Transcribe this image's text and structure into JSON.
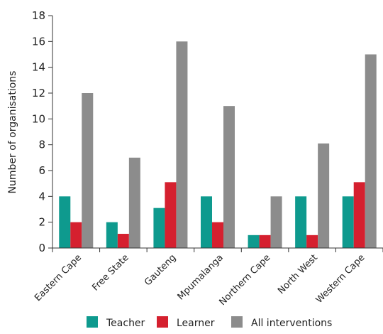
{
  "chart_data": {
    "type": "bar",
    "title": "",
    "xlabel": "",
    "ylabel": "Number of organisations",
    "ylim": [
      0,
      18
    ],
    "yticks": [
      0,
      2,
      4,
      6,
      8,
      10,
      12,
      14,
      16,
      18
    ],
    "grid": false,
    "legend_position": "bottom",
    "categories": [
      "Eastern Cape",
      "Free State",
      "Gauteng",
      "Mpumalanga",
      "Northern Cape",
      "North West",
      "Western Cape"
    ],
    "series": [
      {
        "name": "Teacher",
        "color": "#0e9a8e",
        "values": [
          4,
          2,
          3.1,
          4,
          1,
          4,
          4
        ]
      },
      {
        "name": "Learner",
        "color": "#d5202f",
        "values": [
          2,
          1.1,
          5.1,
          2,
          1,
          1,
          5.1
        ]
      },
      {
        "name": "All interventions",
        "color": "#8c8c8c",
        "values": [
          12,
          7,
          16,
          11,
          4,
          8.1,
          15
        ]
      }
    ]
  }
}
